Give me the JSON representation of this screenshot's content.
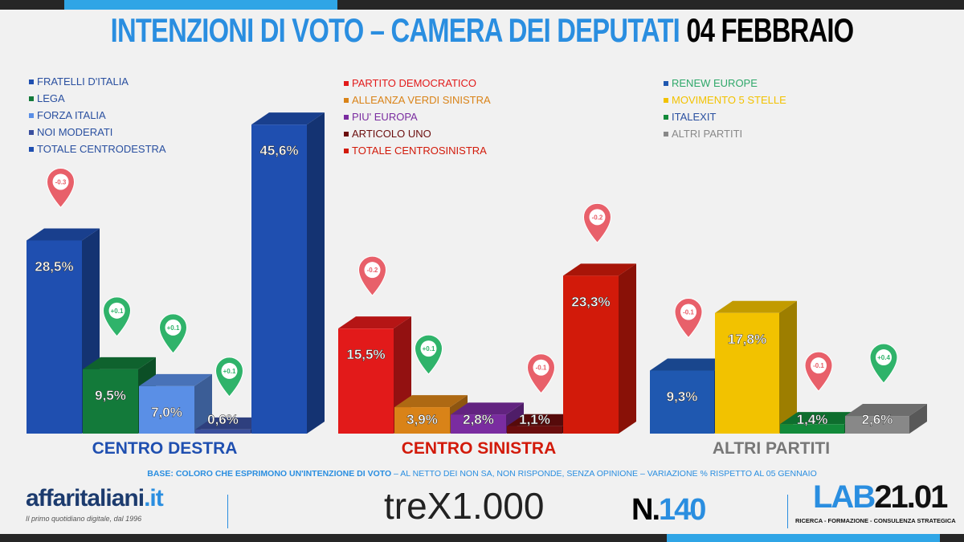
{
  "title": {
    "main": "INTENZIONI DI VOTO – CAMERA DEI DEPUTATI",
    "date": "04 FEBBRAIO"
  },
  "legend": {
    "centrodestra": [
      {
        "label": "FRATELLI D'ITALIA",
        "color": "#1f4fb0"
      },
      {
        "label": "LEGA",
        "color": "#137a3a"
      },
      {
        "label": "FORZA ITALIA",
        "color": "#5a8fe6"
      },
      {
        "label": "NOI MODERATI",
        "color": "#3a4f9e"
      },
      {
        "label": "TOTALE CENTRODESTRA",
        "color": "#1f4fb0"
      }
    ],
    "centrosinistra": [
      {
        "label": "PARTITO DEMOCRATICO",
        "color": "#e21a1a"
      },
      {
        "label": "ALLEANZA VERDI SINISTRA",
        "color": "#d98318"
      },
      {
        "label": "PIU' EUROPA",
        "color": "#7a2ca0"
      },
      {
        "label": "ARTICOLO UNO",
        "color": "#6b0d0d"
      },
      {
        "label": "TOTALE CENTROSINISTRA",
        "color": "#d21a0a"
      }
    ],
    "altri": [
      {
        "label": "RENEW EUROPE",
        "color": "#1f58b0",
        "text": "#2fa86a"
      },
      {
        "label": "MOVIMENTO 5 STELLE",
        "color": "#f2c200",
        "text": "#f2c200"
      },
      {
        "label": "ITALEXIT",
        "color": "#128a3a",
        "text": "#2a50a0"
      },
      {
        "label": "ALTRI PARTITI",
        "color": "#888888",
        "text": "#888888"
      }
    ]
  },
  "chart_data": {
    "type": "bar",
    "unit": "%",
    "groups": [
      {
        "name": "CENTRO DESTRA",
        "color": "#1f4fb0",
        "categories": [
          "FRATELLI D'ITALIA",
          "LEGA",
          "FORZA ITALIA",
          "NOI MODERATI",
          "TOTALE CENTRODESTRA"
        ],
        "values": [
          28.5,
          9.5,
          7.0,
          0.6,
          45.6
        ],
        "labels": [
          "28,5%",
          "9,5%",
          "7,0%",
          "0,6%",
          "45,6%"
        ],
        "changes": [
          "-0.3",
          "+0.1",
          "+0.1",
          "+0.1",
          null
        ],
        "colors": [
          "#1f4fb0",
          "#137a3a",
          "#5a8fe6",
          "#3a4f9e",
          "#1f4fb0"
        ]
      },
      {
        "name": "CENTRO SINISTRA",
        "color": "#d21a0a",
        "categories": [
          "PARTITO DEMOCRATICO",
          "ALLEANZA VERDI SINISTRA",
          "PIU' EUROPA",
          "ARTICOLO UNO",
          "TOTALE CENTROSINISTRA"
        ],
        "values": [
          15.5,
          3.9,
          2.8,
          1.1,
          23.3
        ],
        "labels": [
          "15,5%",
          "3,9%",
          "2,8%",
          "1,1%",
          "23,3%"
        ],
        "changes": [
          "-0.2",
          "+0.1",
          null,
          "-0.1",
          "-0.2"
        ],
        "colors": [
          "#e21a1a",
          "#d98318",
          "#7a2ca0",
          "#6b0d0d",
          "#d21a0a"
        ]
      },
      {
        "name": "ALTRI PARTITI",
        "color": "#777777",
        "categories": [
          "RENEW EUROPE",
          "MOVIMENTO 5 STELLE",
          "ITALEXIT",
          "ALTRI PARTITI"
        ],
        "values": [
          9.3,
          17.8,
          1.4,
          2.6
        ],
        "labels": [
          "9,3%",
          "17,8%",
          "1,4%",
          "2,6%"
        ],
        "changes": [
          "-0.1",
          null,
          "-0.1",
          "+0.4"
        ],
        "colors": [
          "#1f58b0",
          "#f2c200",
          "#128a3a",
          "#888888"
        ]
      }
    ]
  },
  "footer": {
    "base_bold": "BASE: COLORO CHE ESPRIMONO UN'INTENZIONE DI VOTO",
    "base_rest": " – AL NETTO DEI NON SA, NON RISPONDE, SENZA OPINIONE – VARIAZIONE % RISPETTO AL 05 GENNAIO",
    "logo1": "affaritaliani",
    "logo1_tld": ".it",
    "logo1_tag": "Il primo quotidiano digitale, dal 1996",
    "trex": "treX1.000",
    "number_prefix": "N.",
    "number": "140",
    "lab_a": "LAB",
    "lab_b": "21.01",
    "lab_tag": "RICERCA - FORMAZIONE - CONSULENZA STRATEGICA"
  }
}
